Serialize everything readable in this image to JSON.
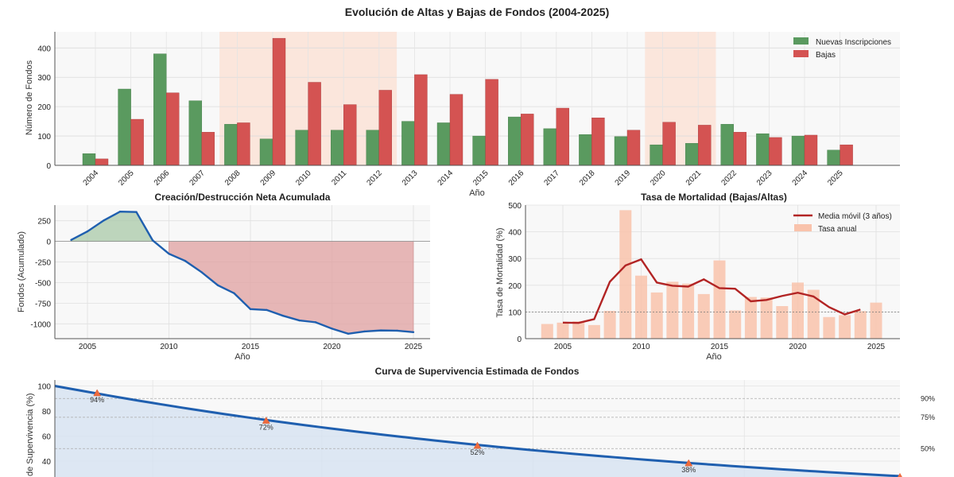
{
  "figure": {
    "title": "Evolución de Altas y Bajas de Fondos (2004-2025)",
    "colors": {
      "green": "#5a9a5f",
      "red": "#d45352",
      "blue": "#1f5faf",
      "darkred": "#b22424",
      "salmon": "#f9c3ac",
      "shade": "#fbe3d8"
    }
  },
  "chart_data": [
    {
      "type": "bar",
      "title": "",
      "xlabel": "Año",
      "ylabel": "Número de Fondos",
      "ylim": [
        0,
        455
      ],
      "yticks": [
        "0",
        "100",
        "200",
        "300",
        "400"
      ],
      "categories": [
        "2004",
        "2005",
        "2006",
        "2007",
        "2008",
        "2009",
        "2010",
        "2011",
        "2012",
        "2013",
        "2014",
        "2015",
        "2016",
        "2017",
        "2018",
        "2019",
        "2020",
        "2021",
        "2022",
        "2023",
        "2024",
        "2025"
      ],
      "series": [
        {
          "name": "Nuevas Inscripciones",
          "values": [
            40,
            260,
            380,
            220,
            140,
            90,
            120,
            120,
            120,
            150,
            145,
            100,
            165,
            125,
            105,
            98,
            70,
            75,
            140,
            108,
            100,
            52
          ]
        },
        {
          "name": "Bajas",
          "values": [
            22,
            157,
            247,
            113,
            145,
            433,
            283,
            207,
            256,
            309,
            242,
            293,
            175,
            195,
            162,
            120,
            147,
            137,
            113,
            95,
            103,
            70
          ]
        }
      ],
      "shaded_periods": [
        [
          2008,
          2012
        ],
        [
          2020,
          2021
        ]
      ],
      "legend": "top-right"
    },
    {
      "type": "area",
      "title": "Creación/Destrucción Neta Acumulada",
      "xlabel": "Año",
      "ylabel": "Fondos (Acumulado)",
      "ylim": [
        -1180,
        440
      ],
      "yticks": [
        250,
        0,
        -250,
        -500,
        -750,
        -1000
      ],
      "xticks": [
        2005,
        2010,
        2015,
        2020,
        2025
      ],
      "x": [
        2004,
        2005,
        2006,
        2007,
        2008,
        2009,
        2010,
        2011,
        2012,
        2013,
        2014,
        2015,
        2016,
        2017,
        2018,
        2019,
        2020,
        2021,
        2022,
        2023,
        2024,
        2025
      ],
      "values": [
        18,
        121,
        254,
        361,
        356,
        13,
        -150,
        -237,
        -373,
        -532,
        -629,
        -822,
        -832,
        -902,
        -959,
        -981,
        -1058,
        -1120,
        -1093,
        -1080,
        -1083,
        -1101
      ]
    },
    {
      "type": "bar",
      "title": "Tasa de Mortalidad (Bajas/Altas)",
      "xlabel": "Año",
      "ylabel": "Tasa de Mortalidad (%)",
      "ylim": [
        0,
        500
      ],
      "yticks": [
        0,
        100,
        200,
        300,
        400,
        500
      ],
      "xticks": [
        2005,
        2010,
        2015,
        2020,
        2025
      ],
      "reference_line": 100,
      "x": [
        2004,
        2005,
        2006,
        2007,
        2008,
        2009,
        2010,
        2011,
        2012,
        2013,
        2014,
        2015,
        2016,
        2017,
        2018,
        2019,
        2020,
        2021,
        2022,
        2023,
        2024,
        2025
      ],
      "series": [
        {
          "name": "Tasa anual",
          "values": [
            55,
            60,
            65,
            51,
            104,
            481,
            236,
            173,
            213,
            206,
            167,
            293,
            106,
            156,
            154,
            122,
            210,
            183,
            81,
            88,
            103,
            135
          ]
        },
        {
          "name": "Media móvil (3 años)",
          "x": [
            2005,
            2006,
            2007,
            2008,
            2009,
            2010,
            2011,
            2012,
            2013,
            2014,
            2015,
            2016,
            2017,
            2018,
            2019,
            2020,
            2021,
            2022,
            2023,
            2024
          ],
          "values": [
            60,
            59,
            73,
            213,
            274,
            297,
            210,
            198,
            195,
            222,
            189,
            187,
            140,
            145,
            160,
            172,
            158,
            118,
            91,
            109
          ]
        }
      ],
      "legend": "top-right"
    },
    {
      "type": "line",
      "title": "Curva de Supervivencia Estimada de Fondos",
      "ylabel": "% de Supervivencia (%)",
      "ylabel_visible": "de Supervivencia (%)",
      "ylim": [
        28,
        104
      ],
      "yticks": [
        40,
        60,
        80,
        100
      ],
      "x": [
        0,
        1,
        5,
        10,
        15,
        20
      ],
      "values": [
        100,
        94,
        72,
        52,
        38,
        28
      ],
      "point_labels": [
        {
          "x": 1,
          "label": "94%"
        },
        {
          "x": 5,
          "label": "72%"
        },
        {
          "x": 10,
          "label": "52%"
        },
        {
          "x": 15,
          "label": "38%"
        }
      ],
      "reference_lines": [
        {
          "value": 90,
          "label": "90%"
        },
        {
          "value": 75,
          "label": "75%"
        },
        {
          "value": 50,
          "label": "50%"
        }
      ]
    }
  ]
}
